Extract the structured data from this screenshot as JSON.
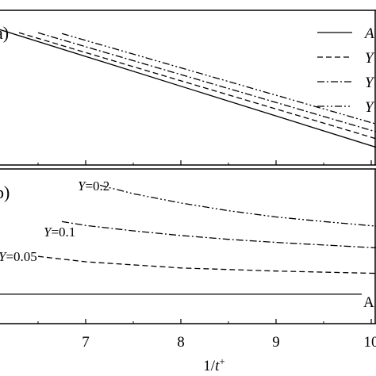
{
  "chart_data": [
    {
      "panel": "a",
      "type": "line",
      "panel_label": "a)",
      "xlim": [
        6.1,
        10.05
      ],
      "ylim": [
        0,
        1
      ],
      "legend_position": "top-right",
      "legend": [
        {
          "label": "A",
          "style": "solid"
        },
        {
          "label": "Y",
          "style": "dashed"
        },
        {
          "label": "Y",
          "style": "dashdot"
        },
        {
          "label": "Y",
          "style": "dashdotdot"
        }
      ],
      "series": [
        {
          "style": "solid",
          "x": [
            6.1,
            10.05
          ],
          "y": [
            0.875,
            0.115
          ]
        },
        {
          "style": "dashed",
          "x": [
            6.3,
            10.05
          ],
          "y": [
            0.855,
            0.17
          ]
        },
        {
          "style": "dashdot",
          "x": [
            6.5,
            10.05
          ],
          "y": [
            0.855,
            0.215
          ]
        },
        {
          "style": "dashdotdot",
          "x": [
            6.75,
            10.05
          ],
          "y": [
            0.85,
            0.265
          ]
        }
      ]
    },
    {
      "panel": "b",
      "type": "line",
      "panel_label": "b)",
      "xlabel": "1/t⁺",
      "xlim": [
        6.1,
        10.05
      ],
      "ylim": [
        0,
        1
      ],
      "xticks": [
        7,
        8,
        9,
        10
      ],
      "xtick_labels": [
        "7",
        "8",
        "9",
        "10"
      ],
      "series": [
        {
          "style": "solid",
          "label": "A",
          "x": [
            6.1,
            7,
            8,
            9,
            9.9
          ],
          "y": [
            0.19,
            0.19,
            0.19,
            0.19,
            0.19
          ]
        },
        {
          "style": "dashed",
          "label_prefix": "Y",
          "label": "=0.05",
          "x": [
            6.5,
            7,
            8,
            9,
            10.05
          ],
          "y": [
            0.435,
            0.4,
            0.36,
            0.34,
            0.325
          ]
        },
        {
          "style": "dashdot",
          "label_prefix": "Y",
          "label": "=0.1",
          "x": [
            6.75,
            7,
            7.5,
            8,
            8.5,
            9,
            10.05
          ],
          "y": [
            0.66,
            0.635,
            0.6,
            0.57,
            0.545,
            0.525,
            0.49
          ]
        },
        {
          "style": "dashdotdot",
          "label_prefix": "Y",
          "label": "=0.2",
          "x": [
            7.15,
            7.5,
            8,
            8.5,
            9,
            9.5,
            10.05
          ],
          "y": [
            0.895,
            0.84,
            0.78,
            0.73,
            0.69,
            0.66,
            0.63
          ]
        }
      ]
    }
  ]
}
